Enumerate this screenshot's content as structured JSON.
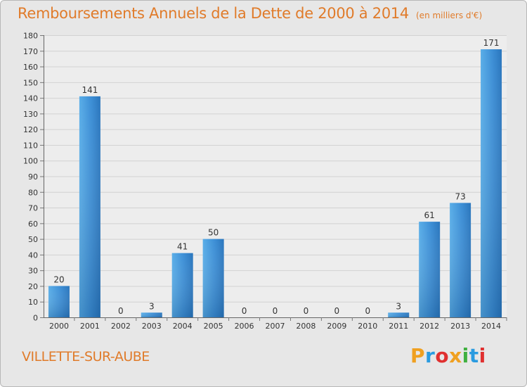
{
  "title": "Remboursements Annuels de la Dette de 2000 à 2014",
  "unit": "(en milliers d'€)",
  "commune": "VILLETTE-SUR-AUBE",
  "logo": {
    "letters": [
      "P",
      "r",
      "o",
      "x",
      "i",
      "t",
      "i"
    ],
    "colors": [
      "#f0a020",
      "#2a9be0",
      "#e03030",
      "#f0a020",
      "#40b040",
      "#2a9be0",
      "#e03030"
    ]
  },
  "colors": {
    "bar": "#3d8fd6",
    "accent": "#e07b2a"
  },
  "chart_data": {
    "type": "bar",
    "categories": [
      "2000",
      "2001",
      "2002",
      "2003",
      "2004",
      "2005",
      "2006",
      "2007",
      "2008",
      "2009",
      "2010",
      "2011",
      "2012",
      "2013",
      "2014"
    ],
    "values": [
      20,
      141,
      0,
      3,
      41,
      50,
      0,
      0,
      0,
      0,
      0,
      3,
      61,
      73,
      171
    ],
    "ylim": [
      0,
      180
    ],
    "yticks": [
      0,
      10,
      20,
      30,
      40,
      50,
      60,
      70,
      80,
      90,
      100,
      110,
      120,
      130,
      140,
      150,
      160,
      170,
      180
    ],
    "grid": true
  }
}
